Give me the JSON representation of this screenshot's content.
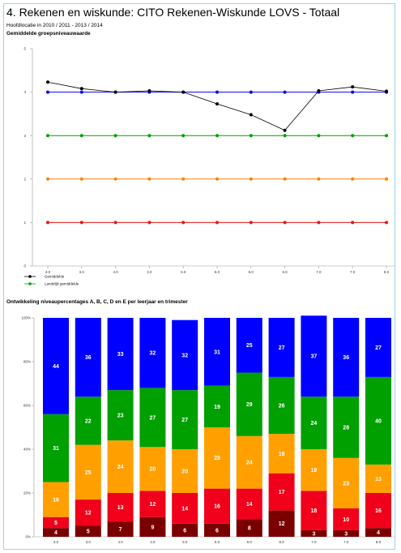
{
  "page": {
    "title": "4. Rekenen en wiskunde: CITO Rekenen-Wiskunde LOVS - Totaal",
    "subtitle": "Hoofdlocatie in 2010 / 2011 - 2013 / 2014",
    "line_heading": "Gemiddelde groepsniveauwaarde",
    "bar_heading": "Ontwikkeling niveaupercentages A, B, C, D en E per leerjaar en trimester"
  },
  "chart_data": [
    {
      "type": "line",
      "title": "Gemiddelde groepsniveauwaarde",
      "categories": [
        "3.0",
        "3.0",
        "4.0",
        "4.0",
        "5.0",
        "5.0",
        "6.0",
        "6.0",
        "7.0",
        "7.0",
        "8.0"
      ],
      "ylim": [
        0,
        5
      ],
      "yticks": [
        "0",
        "1",
        "2",
        "3",
        "4",
        "5"
      ],
      "series": [
        {
          "name": "Gemiddelde",
          "color": "#000000",
          "values": [
            4.23,
            4.08,
            4.0,
            4.03,
            4.0,
            3.73,
            3.48,
            3.12,
            4.03,
            4.12,
            4.02
          ]
        },
        {
          "name": "",
          "color": "#0000ff",
          "values": [
            4,
            4,
            4,
            4,
            4,
            4,
            4,
            4,
            4,
            4,
            4
          ]
        },
        {
          "name": "Landelijk gemiddelde",
          "color": "#00a000",
          "values": [
            3,
            3,
            3,
            3,
            3,
            3,
            3,
            3,
            3,
            3,
            3
          ]
        },
        {
          "name": "",
          "color": "#ff8000",
          "values": [
            2,
            2,
            2,
            2,
            2,
            2,
            2,
            2,
            2,
            2,
            2
          ]
        },
        {
          "name": "",
          "color": "#ee1111",
          "values": [
            1,
            1,
            1,
            1,
            1,
            1,
            1,
            1,
            1,
            1,
            1
          ]
        }
      ],
      "legend": "bottom-left",
      "grid": false
    },
    {
      "type": "bar",
      "stacked": true,
      "title": "Ontwikkeling niveaupercentages A, B, C, D en E per leerjaar en trimester",
      "categories": [
        "3.0",
        "3.0",
        "4.0",
        "4.0",
        "5.0",
        "5.0",
        "6.0",
        "6.0",
        "7.0",
        "7.0",
        "8.0"
      ],
      "ylim": [
        0,
        100
      ],
      "yticks": [
        "0%",
        "20%",
        "40%",
        "60%",
        "80%",
        "100%"
      ],
      "series": [
        {
          "name": "E",
          "color": "#7a0000",
          "values": [
            4,
            5,
            7,
            9,
            6,
            6,
            8,
            12,
            3,
            3,
            4
          ]
        },
        {
          "name": "D",
          "color": "#f0001a",
          "values": [
            5,
            12,
            13,
            12,
            14,
            16,
            14,
            17,
            18,
            10,
            16
          ]
        },
        {
          "name": "C",
          "color": "#ffa000",
          "values": [
            16,
            25,
            24,
            20,
            20,
            28,
            24,
            18,
            19,
            23,
            13
          ]
        },
        {
          "name": "B",
          "color": "#00a000",
          "values": [
            31,
            22,
            23,
            27,
            27,
            19,
            29,
            26,
            24,
            28,
            40
          ]
        },
        {
          "name": "A",
          "color": "#0000ff",
          "values": [
            44,
            36,
            33,
            32,
            32,
            31,
            25,
            27,
            37,
            36,
            27
          ]
        }
      ]
    }
  ]
}
